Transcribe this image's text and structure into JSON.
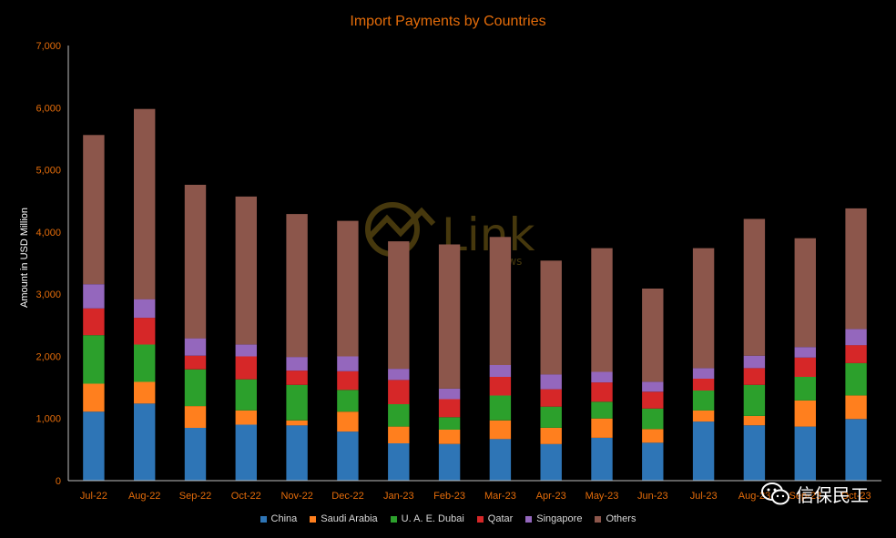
{
  "chart_data": {
    "type": "bar",
    "stacked": true,
    "title": "Import Payments by Countries",
    "xlabel": "",
    "ylabel": "Amount in USD Million",
    "ylim": [
      0,
      7000
    ],
    "yticks": [
      "0",
      "1,000",
      "2,000",
      "3,000",
      "4,000",
      "5,000",
      "6,000",
      "7,000"
    ],
    "grid": false,
    "legend_position": "bottom",
    "categories": [
      "Jul-22",
      "Aug-22",
      "Sep-22",
      "Oct-22",
      "Nov-22",
      "Dec-22",
      "Jan-23",
      "Feb-23",
      "Mar-23",
      "Apr-23",
      "May-23",
      "Jun-23",
      "Jul-23",
      "Aug-23",
      "Sep-23",
      "Oct-23"
    ],
    "series": [
      {
        "name": "China",
        "color": "#2e75b6",
        "values": [
          1110,
          1240,
          850,
          900,
          890,
          790,
          600,
          590,
          670,
          590,
          690,
          610,
          950,
          890,
          870,
          990
        ]
      },
      {
        "name": "Saudi Arabia",
        "color": "#ff7f1e",
        "values": [
          450,
          350,
          350,
          230,
          80,
          320,
          270,
          230,
          300,
          260,
          310,
          220,
          180,
          150,
          420,
          380
        ]
      },
      {
        "name": "U. A. E. Dubai",
        "color": "#2ca02c",
        "values": [
          780,
          600,
          590,
          500,
          570,
          350,
          360,
          200,
          400,
          340,
          270,
          330,
          320,
          500,
          380,
          520
        ]
      },
      {
        "name": "Qatar",
        "color": "#d62728",
        "values": [
          430,
          430,
          220,
          370,
          230,
          300,
          390,
          290,
          300,
          280,
          310,
          270,
          190,
          270,
          310,
          290
        ]
      },
      {
        "name": "Singapore",
        "color": "#9467bd",
        "values": [
          390,
          300,
          280,
          190,
          220,
          240,
          180,
          170,
          190,
          240,
          170,
          160,
          170,
          200,
          170,
          260
        ]
      },
      {
        "name": "Others",
        "color": "#8c564b",
        "values": [
          2400,
          3060,
          2470,
          2380,
          2300,
          2180,
          2050,
          2320,
          2060,
          1830,
          1990,
          1500,
          1930,
          2200,
          1750,
          1940
        ]
      }
    ],
    "colors": {
      "title": "#e46c0a",
      "axis_text": "#e46c0a",
      "axis_line": "#bfbfbf",
      "ylabel": "#ffffff"
    }
  },
  "watermark": {
    "logo_text": "Link",
    "logo_subtext": "News",
    "brand_text": "信保民工",
    "brand_icon": "wechat-icon"
  }
}
